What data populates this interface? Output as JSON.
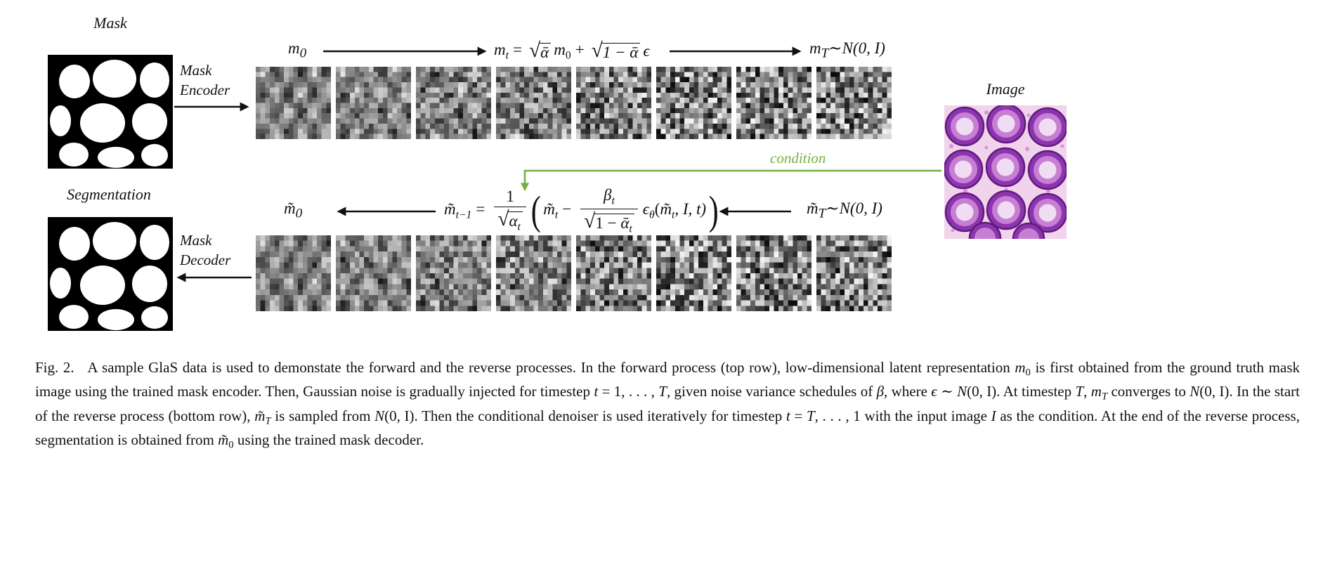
{
  "labels": {
    "mask": "Mask",
    "encoder_line1": "Mask",
    "encoder_line2": "Encoder",
    "segmentation": "Segmentation",
    "decoder_line1": "Mask",
    "decoder_line2": "Decoder",
    "image": "Image",
    "condition": "condition"
  },
  "forward": {
    "m0_base": "m",
    "m0_sub": "0",
    "lhs_base": "m",
    "lhs_sub": "t",
    "eq": "=",
    "sqrt1": "√",
    "rad1": "ᾱ",
    "mid_base": "m",
    "mid_sub": "0",
    "plus": "+",
    "sqrt2": "√",
    "rad2": "1 − ᾱ",
    "eps": "ϵ",
    "mT_base": "m",
    "mT_sub": "T",
    "mT_sim": "∼",
    "mT_N": "N",
    "mT_args": "(0, I)"
  },
  "reverse": {
    "m0_base": "m̃",
    "m0_sub": "0",
    "lhs_base": "m̃",
    "lhs_sub": "t−1",
    "eq": "=",
    "f1_num": "1",
    "f1_sqrt": "√",
    "f1_rad_base": "α",
    "f1_rad_sub": "t",
    "lparen": "(",
    "t1_base": "m̃",
    "t1_sub": "t",
    "minus": "−",
    "f2_num_base": "β",
    "f2_num_sub": "t",
    "f2_sqrt": "√",
    "f2_rad_pre": "1 − ",
    "f2_rad_base": "ᾱ",
    "f2_rad_sub": "t",
    "eps_base": "ϵ",
    "eps_sub": "θ",
    "args_open": "(",
    "arg1_base": "m̃",
    "arg1_sub": "t",
    "args_rest": ", I, t)",
    "rparen": ")",
    "mT_base": "m̃",
    "mT_sub": "T",
    "mT_sim": "∼",
    "mT_N": "N",
    "mT_args": "(0, I)"
  },
  "noise": {
    "tiles_per_row": 8,
    "grid_cols": 16,
    "grid_rows": 14
  },
  "colors": {
    "condition_green": "#76b043",
    "ink": "#111111"
  },
  "caption": {
    "segments": [
      {
        "t": "Fig. 2.   A sample GlaS data is used to demonstate the forward and the reverse processes. In the forward process (top row), low-dimensional latent representation "
      },
      {
        "t": "m",
        "c": "it"
      },
      {
        "t": "0",
        "c": "sub"
      },
      {
        "t": " is first obtained from the ground truth mask image using the trained mask encoder. Then, Gaussian noise is gradually injected for timestep "
      },
      {
        "t": "t",
        "c": "it"
      },
      {
        "t": " = 1, . . . , "
      },
      {
        "t": "T",
        "c": "it"
      },
      {
        "t": ", given noise variance schedules of "
      },
      {
        "t": "β",
        "c": "it"
      },
      {
        "t": ", where "
      },
      {
        "t": "ϵ",
        "c": "it"
      },
      {
        "t": " ∼ "
      },
      {
        "t": "N",
        "c": "it"
      },
      {
        "t": "(0, I). At timestep "
      },
      {
        "t": "T",
        "c": "it"
      },
      {
        "t": ", "
      },
      {
        "t": "m",
        "c": "it"
      },
      {
        "t": "T",
        "c": "it sub"
      },
      {
        "t": " converges to "
      },
      {
        "t": "N",
        "c": "it"
      },
      {
        "t": "(0, I). In the start of the reverse process (bottom row), "
      },
      {
        "t": "m̃",
        "c": "it"
      },
      {
        "t": "T",
        "c": "it sub"
      },
      {
        "t": " is sampled from "
      },
      {
        "t": "N",
        "c": "it"
      },
      {
        "t": "(0, I). Then the conditional denoiser is used iteratively for timestep "
      },
      {
        "t": "t",
        "c": "it"
      },
      {
        "t": " = "
      },
      {
        "t": "T",
        "c": "it"
      },
      {
        "t": ", . . . , 1 with the input image "
      },
      {
        "t": "I",
        "c": "it"
      },
      {
        "t": " as the condition. At the end of the reverse process, segmentation is obtained from "
      },
      {
        "t": "m̃",
        "c": "it"
      },
      {
        "t": "0",
        "c": "sub"
      },
      {
        "t": " using the trained mask decoder."
      }
    ]
  }
}
